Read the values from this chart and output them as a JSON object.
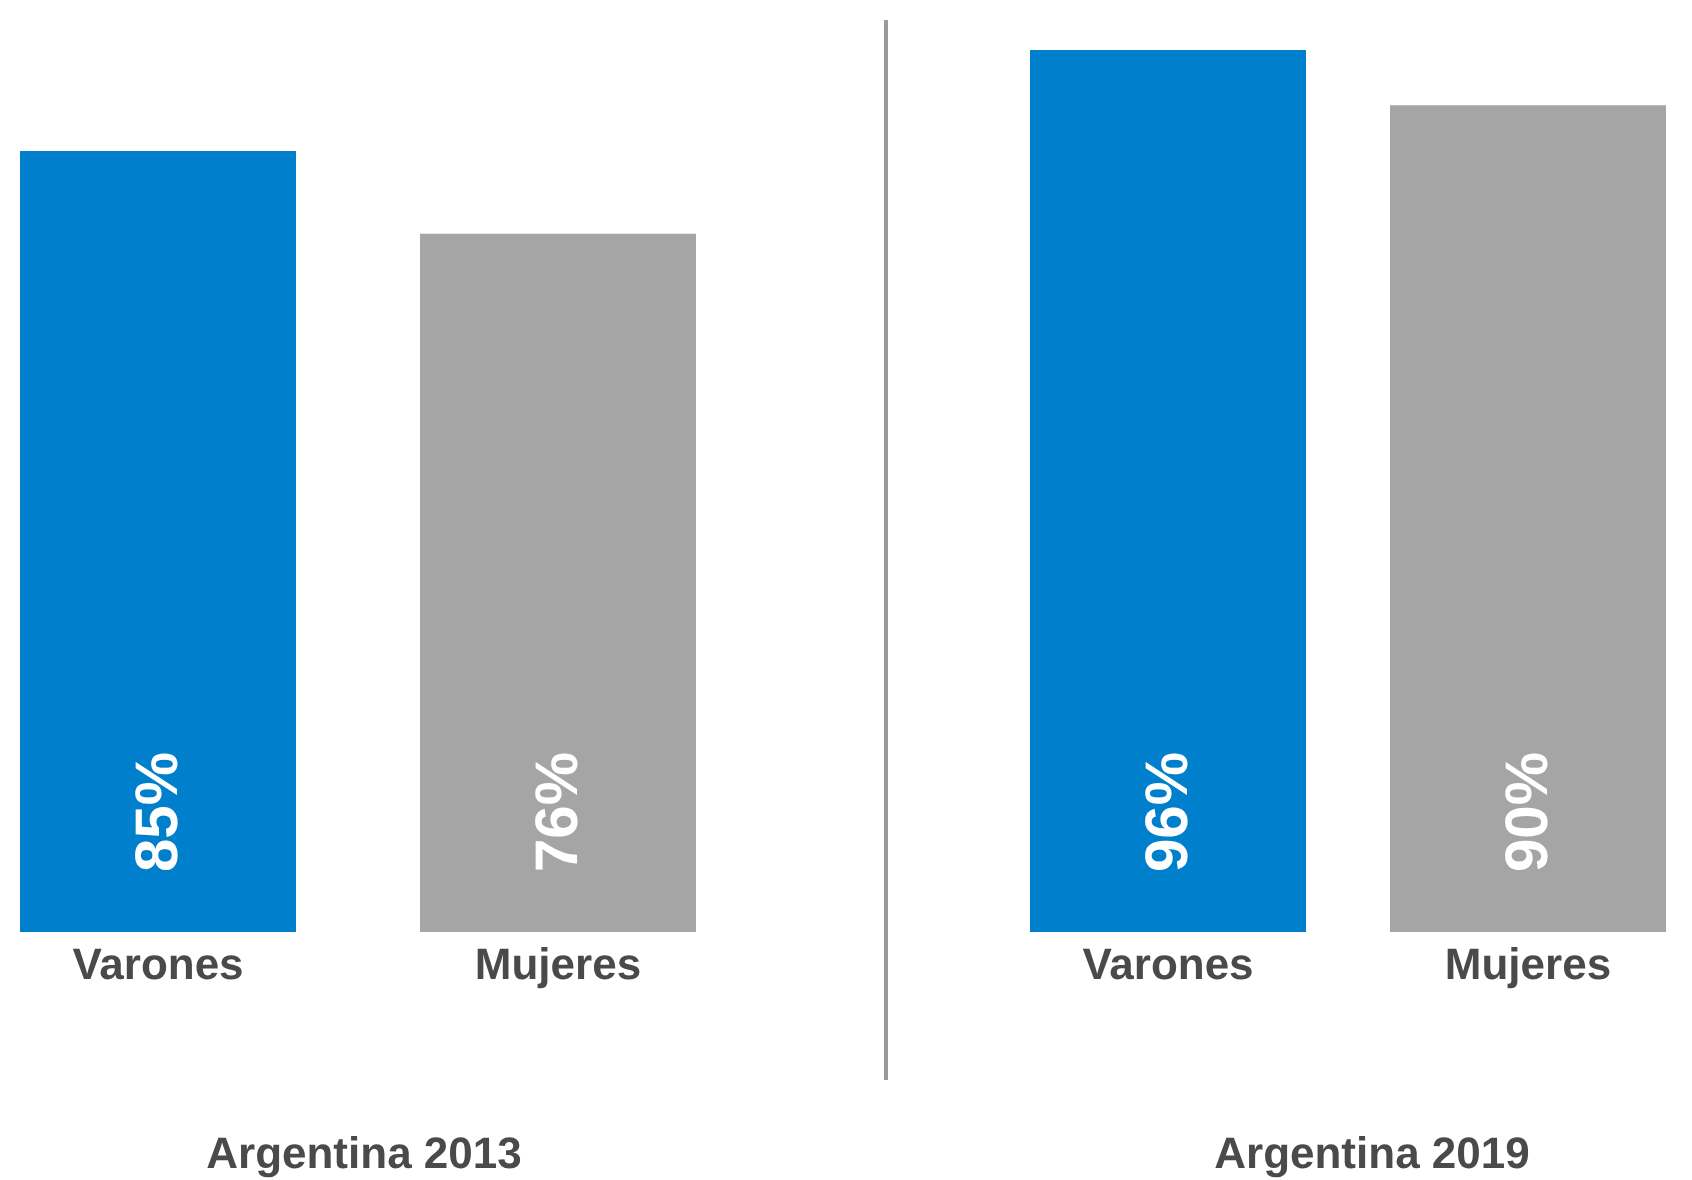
{
  "chart_data": [
    {
      "type": "bar",
      "xlabel": "Argentina 2013",
      "categories": [
        "Varones",
        "Mujeres"
      ],
      "values": [
        85,
        76
      ],
      "value_labels": [
        "85%",
        "76%"
      ],
      "colors": [
        "#0080cc",
        "#a5a5a5"
      ]
    },
    {
      "type": "bar",
      "xlabel": "Argentina 2019",
      "categories": [
        "Varones",
        "Mujeres"
      ],
      "values": [
        96,
        90
      ],
      "value_labels": [
        "96%",
        "90%"
      ],
      "colors": [
        "#0080cc",
        "#a5a5a5"
      ]
    }
  ]
}
